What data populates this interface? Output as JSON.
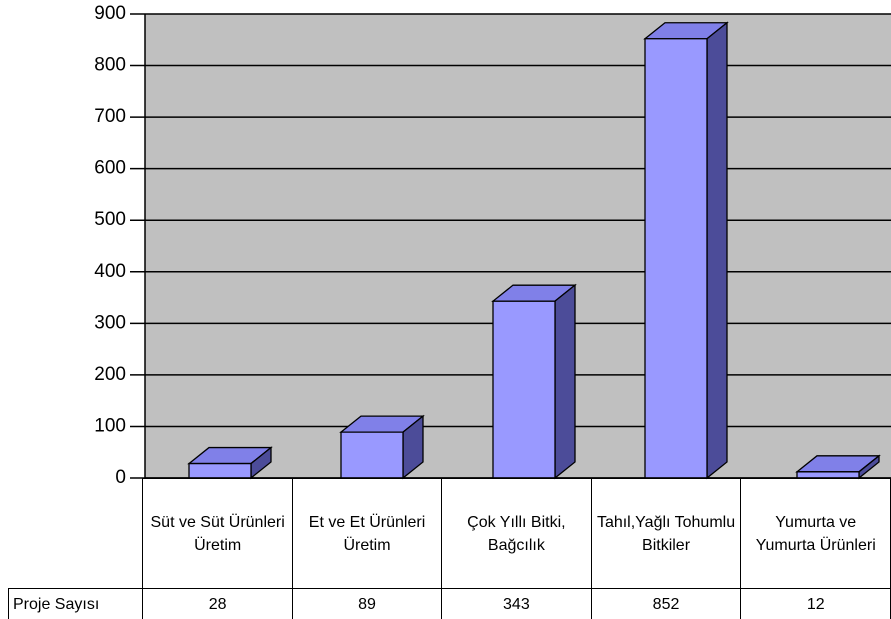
{
  "chart_data": {
    "type": "bar",
    "categories": [
      "Süt ve Süt Ürünleri Üretim",
      "Et ve Et Ürünleri Üretim",
      "Çok Yıllı Bitki, Bağcılık",
      "Tahıl,Yağlı Tohumlu Bitkiler",
      "Yumurta ve Yumurta Ürünleri"
    ],
    "series": [
      {
        "name": "Proje Sayısı",
        "color": "#9999ff",
        "values": [
          28,
          89,
          343,
          852,
          12
        ]
      }
    ],
    "ylim": [
      0,
      900
    ],
    "yticks": [
      0,
      100,
      200,
      300,
      400,
      500,
      600,
      700,
      800,
      900
    ],
    "grid": true
  }
}
